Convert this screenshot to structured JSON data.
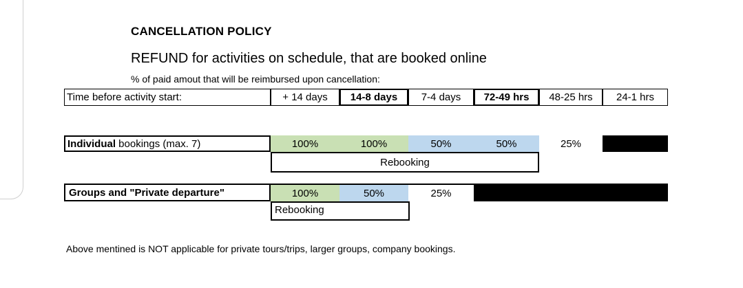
{
  "policy": {
    "title": "CANCELLATION POLICY",
    "subtitle": "REFUND for activities on schedule, that are booked online",
    "note": "% of paid amout that will be reimbursed upon cancellation:"
  },
  "header_row": {
    "label": "Time before activity start:",
    "columns": [
      "+ 14 days",
      "14-8 days",
      "7-4 days",
      "72-49 hrs",
      "48-25 hrs",
      "24-1 hrs"
    ]
  },
  "individual": {
    "label_bold": "Individual",
    "label_rest": " bookings (max. 7)",
    "values": [
      "100%",
      "100%",
      "50%",
      "50%",
      "25%"
    ],
    "rebooking": "Rebooking"
  },
  "groups": {
    "label": "Groups and \"Private departure\"",
    "values": [
      "100%",
      "50%",
      "25%"
    ],
    "rebooking": "Rebooking"
  },
  "footer": "Above mentined is NOT applicable for private tours/trips, larger groups, company bookings.",
  "colors": {
    "green_fill": "#c9e0b4",
    "blue_fill": "#bdd7ee",
    "unavailable_fill": "#000000"
  }
}
